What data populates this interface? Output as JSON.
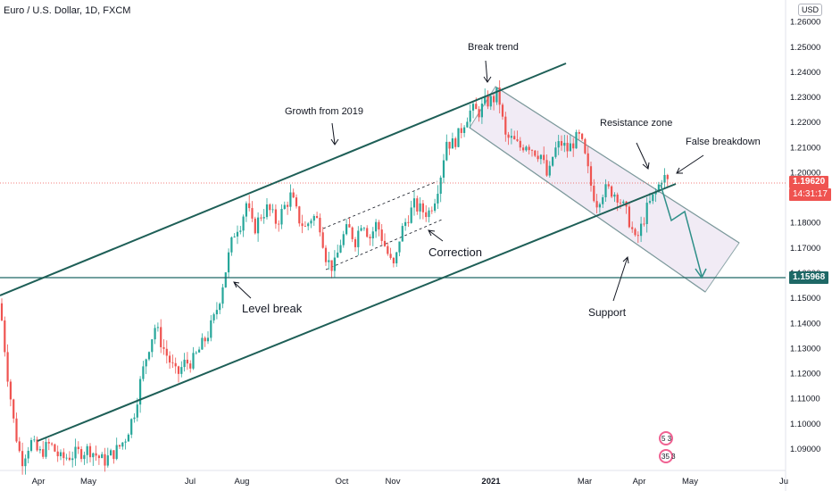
{
  "header": {
    "title": "Euro / U.S. Dollar, 1D, FXCM",
    "currency": "USD"
  },
  "price_badges": {
    "last_price": "1.19620",
    "countdown": "14:31:17",
    "level": "1.15968"
  },
  "chart_data": {
    "type": "candlestick",
    "symbol": "EURUSD",
    "timeframe": "1D",
    "source": "FXCM",
    "x_ticks": [
      "Apr",
      "May",
      "Jul",
      "Aug",
      "Oct",
      "Nov",
      "2021",
      "Mar",
      "Apr",
      "May",
      "Ju"
    ],
    "y_ticks": [
      "1.26000",
      "1.25000",
      "1.24000",
      "1.23000",
      "1.22000",
      "1.21000",
      "1.20000",
      "1.19000",
      "1.18000",
      "1.17000",
      "1.16000",
      "1.15000",
      "1.14000",
      "1.13000",
      "1.12000",
      "1.11000",
      "1.10000",
      "1.09000"
    ],
    "ylim": [
      1.0875,
      1.262
    ],
    "last_price": 1.1962,
    "horizontal_level": 1.15968,
    "annotations": [
      "Break trend",
      "Growth from 2019",
      "Resistance zone",
      "False breakdown",
      "Correction",
      "Level break",
      "Support"
    ],
    "series_anchors": [
      [
        0,
        1.148
      ],
      [
        8,
        1.121
      ],
      [
        16,
        1.099
      ],
      [
        24,
        1.085
      ],
      [
        34,
        1.093
      ],
      [
        44,
        1.088
      ],
      [
        56,
        1.092
      ],
      [
        68,
        1.086
      ],
      [
        84,
        1.088
      ],
      [
        100,
        1.09
      ],
      [
        116,
        1.085
      ],
      [
        132,
        1.09
      ],
      [
        140,
        1.094
      ],
      [
        150,
        1.104
      ],
      [
        158,
        1.118
      ],
      [
        166,
        1.13
      ],
      [
        174,
        1.139
      ],
      [
        182,
        1.131
      ],
      [
        190,
        1.125
      ],
      [
        198,
        1.119
      ],
      [
        206,
        1.124
      ],
      [
        216,
        1.125
      ],
      [
        224,
        1.13
      ],
      [
        232,
        1.135
      ],
      [
        240,
        1.142
      ],
      [
        246,
        1.15
      ],
      [
        252,
        1.16
      ],
      [
        258,
        1.17
      ],
      [
        264,
        1.178
      ],
      [
        270,
        1.18
      ],
      [
        276,
        1.188
      ],
      [
        284,
        1.177
      ],
      [
        292,
        1.183
      ],
      [
        300,
        1.186
      ],
      [
        310,
        1.18
      ],
      [
        318,
        1.186
      ],
      [
        326,
        1.191
      ],
      [
        334,
        1.182
      ],
      [
        342,
        1.178
      ],
      [
        350,
        1.183
      ],
      [
        358,
        1.18
      ],
      [
        366,
        1.165
      ],
      [
        374,
        1.162
      ],
      [
        382,
        1.173
      ],
      [
        390,
        1.178
      ],
      [
        398,
        1.173
      ],
      [
        406,
        1.182
      ],
      [
        414,
        1.174
      ],
      [
        422,
        1.18
      ],
      [
        430,
        1.172
      ],
      [
        438,
        1.164
      ],
      [
        442,
        1.162
      ],
      [
        448,
        1.175
      ],
      [
        456,
        1.182
      ],
      [
        464,
        1.187
      ],
      [
        472,
        1.185
      ],
      [
        480,
        1.184
      ],
      [
        488,
        1.191
      ],
      [
        494,
        1.2
      ],
      [
        500,
        1.213
      ],
      [
        506,
        1.211
      ],
      [
        514,
        1.215
      ],
      [
        522,
        1.222
      ],
      [
        528,
        1.225
      ],
      [
        536,
        1.224
      ],
      [
        544,
        1.228
      ],
      [
        552,
        1.229
      ],
      [
        558,
        1.232
      ],
      [
        566,
        1.214
      ],
      [
        574,
        1.213
      ],
      [
        582,
        1.21
      ],
      [
        590,
        1.212
      ],
      [
        598,
        1.209
      ],
      [
        606,
        1.207
      ],
      [
        614,
        1.197
      ],
      [
        620,
        1.208
      ],
      [
        628,
        1.212
      ],
      [
        636,
        1.209
      ],
      [
        644,
        1.213
      ],
      [
        650,
        1.214
      ],
      [
        656,
        1.205
      ],
      [
        662,
        1.195
      ],
      [
        668,
        1.188
      ],
      [
        676,
        1.193
      ],
      [
        684,
        1.193
      ],
      [
        692,
        1.191
      ],
      [
        700,
        1.185
      ],
      [
        706,
        1.18
      ],
      [
        712,
        1.172
      ],
      [
        718,
        1.178
      ],
      [
        724,
        1.185
      ],
      [
        730,
        1.189
      ],
      [
        736,
        1.193
      ],
      [
        742,
        1.199
      ],
      [
        748,
        1.1962
      ]
    ]
  }
}
